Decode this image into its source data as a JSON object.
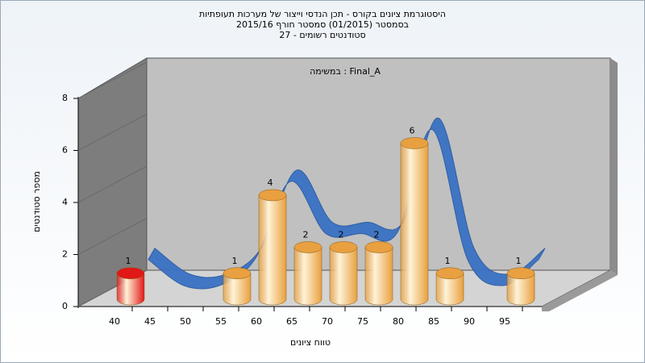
{
  "chart_data": {
    "type": "bar",
    "title": [
      "היסטוגרמת ציונים בקורס - תכן הנדסי וייצור של מערכות תעופתיות",
      "בסמסטר  (01/2015)  סמסטר חורף 2015/16",
      "סטודנטים רשומים - 27"
    ],
    "annotation": "במשימה : Final_A",
    "x_label": "טווח ציונים",
    "y_label": "מספר סטודנטים",
    "categories": [
      "40",
      "45",
      "50",
      "55",
      "60",
      "65",
      "70",
      "75",
      "80",
      "85",
      "90",
      "95"
    ],
    "values": [
      1,
      0,
      0,
      1,
      4,
      2,
      2,
      2,
      6,
      1,
      0,
      1
    ],
    "colors": [
      "#e01818",
      "#e8a040",
      "#e8a040",
      "#e8a040",
      "#e8a040",
      "#e8a040",
      "#e8a040",
      "#e8a040",
      "#e8a040",
      "#e8a040",
      "#e8a040",
      "#e8a040"
    ],
    "curve_color": "#3a72c4",
    "ylim": [
      0,
      8
    ],
    "yticks": [
      0,
      2,
      4,
      6,
      8
    ]
  }
}
